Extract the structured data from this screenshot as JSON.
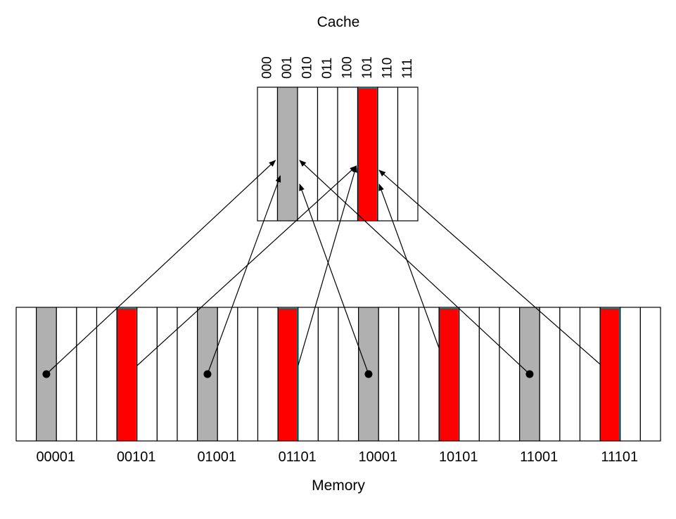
{
  "cache": {
    "title": "Cache",
    "slot_labels": [
      "000",
      "001",
      "010",
      "011",
      "100",
      "101",
      "110",
      "111"
    ],
    "highlight": {
      "001": "gray",
      "101": "red"
    }
  },
  "memory": {
    "title": "Memory",
    "block_labels": [
      "00001",
      "00101",
      "01001",
      "01101",
      "10001",
      "10101",
      "11001",
      "11101"
    ]
  },
  "mappings": [
    {
      "from": "00001",
      "to": "001"
    },
    {
      "from": "00101",
      "to": "101"
    },
    {
      "from": "01001",
      "to": "001"
    },
    {
      "from": "01101",
      "to": "101"
    },
    {
      "from": "10001",
      "to": "001"
    },
    {
      "from": "10101",
      "to": "101"
    },
    {
      "from": "11001",
      "to": "001"
    },
    {
      "from": "11101",
      "to": "101"
    }
  ],
  "colors": {
    "gray_fill": "#b0b0b0",
    "red_fill": "#ff0000",
    "red_edge": "#1a8a8a",
    "cell_stroke": "#000000",
    "arrow": "#000000"
  }
}
